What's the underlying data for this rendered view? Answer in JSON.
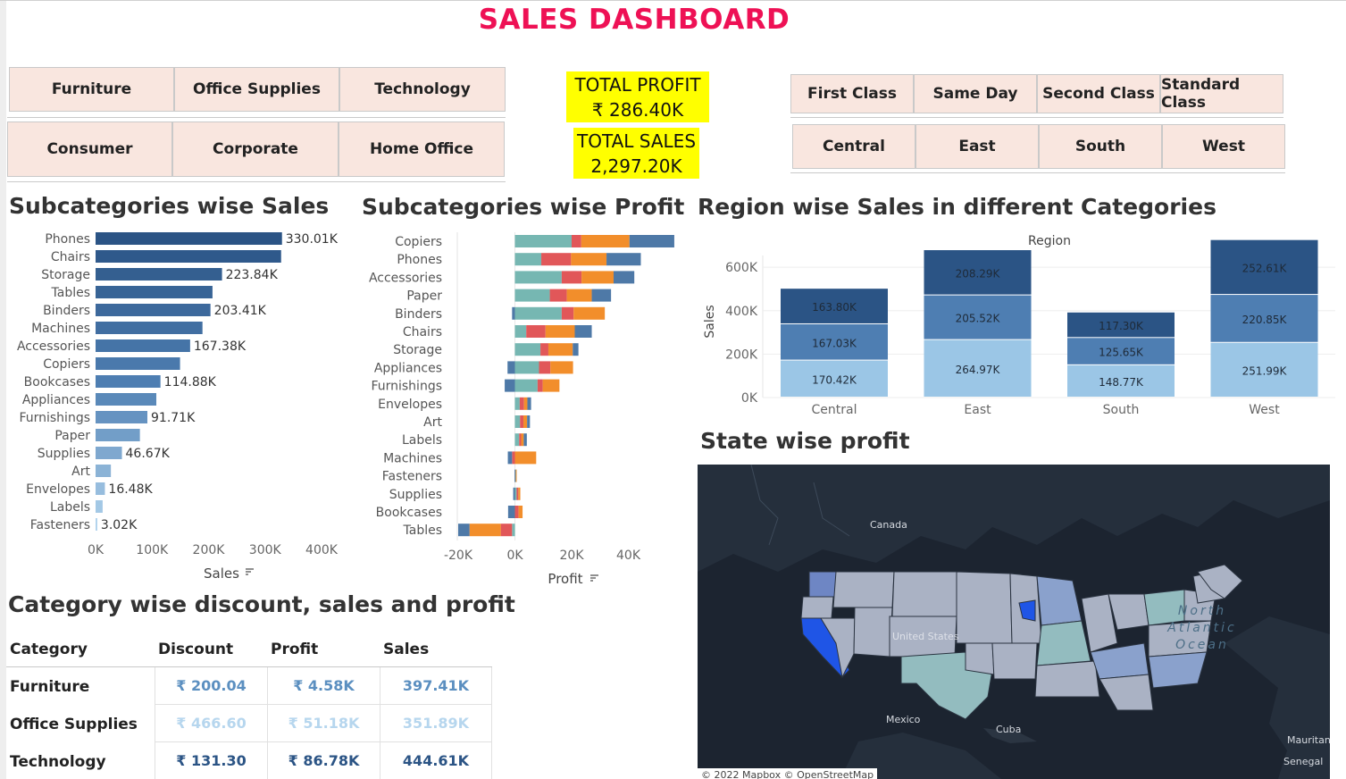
{
  "title": "SALES DASHBOARD",
  "filters": {
    "categories": [
      "Furniture",
      "Office Supplies",
      "Technology"
    ],
    "segments": [
      "Consumer",
      "Corporate",
      "Home Office"
    ],
    "ship_modes": [
      "First Class",
      "Same Day",
      "Second Class",
      "Standard Class"
    ],
    "regions": [
      "Central",
      "East",
      "South",
      "West"
    ]
  },
  "kpis": {
    "profit_label": "TOTAL PROFIT",
    "profit_value": "₹ 286.40K",
    "sales_label": "TOTAL SALES",
    "sales_value": "2,297.20K"
  },
  "sections": {
    "sub_sales": "Subcategories wise Sales",
    "sub_profit": "Subcategories wise Profit",
    "region_sales": "Region wise Sales in different Categories",
    "state_profit": "State wise profit",
    "category_table": "Category wise discount, sales and profit"
  },
  "colors": {
    "title": "#ee1155",
    "kpi_bg": "#ffff00",
    "filter_bg": "#f9e6df",
    "blue_dark": "#2b5485",
    "blue_mid": "#4e7eb2",
    "blue_light": "#9bc6e6",
    "teal": "#76b7b2",
    "red": "#e15759",
    "orange": "#f28e2b",
    "steel": "#4e79a7"
  },
  "chart_data": [
    {
      "type": "bar",
      "orientation": "horizontal",
      "title": "Subcategories wise Sales",
      "xlabel": "Sales",
      "categories": [
        "Phones",
        "Chairs",
        "Storage",
        "Tables",
        "Binders",
        "Machines",
        "Accessories",
        "Copiers",
        "Bookcases",
        "Appliances",
        "Furnishings",
        "Paper",
        "Supplies",
        "Art",
        "Envelopes",
        "Labels",
        "Fasteners"
      ],
      "values": [
        330010,
        328450,
        223840,
        206970,
        203410,
        189240,
        167380,
        149530,
        114880,
        107530,
        91710,
        78480,
        46670,
        27120,
        16480,
        12490,
        3020
      ],
      "data_labels": [
        "330.01K",
        "",
        "223.84K",
        "",
        "203.41K",
        "",
        "167.38K",
        "",
        "114.88K",
        "",
        "91.71K",
        "",
        "46.67K",
        "",
        "16.48K",
        "",
        "3.02K"
      ],
      "x_ticks": [
        "0K",
        "100K",
        "200K",
        "300K",
        "400K"
      ],
      "xlim": [
        0,
        400000
      ]
    },
    {
      "type": "bar",
      "orientation": "horizontal",
      "stacked": true,
      "title": "Subcategories wise Profit",
      "xlabel": "Profit",
      "categories": [
        "Copiers",
        "Phones",
        "Accessories",
        "Paper",
        "Binders",
        "Chairs",
        "Storage",
        "Appliances",
        "Furnishings",
        "Envelopes",
        "Art",
        "Labels",
        "Machines",
        "Fasteners",
        "Supplies",
        "Bookcases",
        "Tables"
      ],
      "series": [
        {
          "color": "#76b7b2",
          "values": [
            20000,
            9300,
            16500,
            12300,
            16500,
            4000,
            9000,
            8500,
            8000,
            1700,
            1800,
            1500,
            0,
            300,
            600,
            0,
            -1000
          ]
        },
        {
          "color": "#e15759",
          "values": [
            3400,
            10500,
            7000,
            6000,
            4200,
            6800,
            2800,
            4000,
            1800,
            1500,
            1200,
            700,
            -1000,
            0,
            600,
            1300,
            -4000
          ]
        },
        {
          "color": "#f28e2b",
          "values": [
            17000,
            12500,
            11300,
            8800,
            11000,
            10300,
            8600,
            8000,
            5900,
            1200,
            1300,
            900,
            7500,
            150,
            700,
            1400,
            -11000
          ]
        },
        {
          "color": "#4e79a7",
          "values": [
            15800,
            12100,
            7300,
            6800,
            -1000,
            6000,
            2000,
            -2600,
            -3600,
            1300,
            1000,
            1100,
            -1500,
            -100,
            -600,
            -2400,
            -4000
          ]
        }
      ],
      "x_ticks": [
        "-20K",
        "0K",
        "20K",
        "40K"
      ],
      "xlim": [
        -20000,
        60000
      ]
    },
    {
      "type": "bar",
      "stacked": true,
      "title": "Region wise Sales in different Categories",
      "x_header": "Region",
      "ylabel": "Sales",
      "categories": [
        "Central",
        "East",
        "South",
        "West"
      ],
      "series": [
        {
          "color": "#9bc6e6",
          "values": [
            170420,
            264970,
            148770,
            251990
          ],
          "labels": [
            "170.42K",
            "264.97K",
            "148.77K",
            "251.99K"
          ]
        },
        {
          "color": "#4e7eb2",
          "values": [
            167030,
            205520,
            125650,
            220850
          ],
          "labels": [
            "167.03K",
            "205.52K",
            "125.65K",
            "220.85K"
          ]
        },
        {
          "color": "#2b5485",
          "values": [
            163800,
            208290,
            117300,
            252610
          ],
          "labels": [
            "163.80K",
            "208.29K",
            "117.30K",
            "252.61K"
          ]
        }
      ],
      "y_ticks": [
        "0K",
        "200K",
        "400K",
        "600K"
      ],
      "ylim": [
        0,
        720000
      ]
    }
  ],
  "map": {
    "labels": [
      "Canada",
      "United States",
      "Mexico",
      "Cuba",
      "Mauritania",
      "Senegal"
    ],
    "ocean": [
      "North",
      "Atlantic",
      "Ocean"
    ],
    "attribution": "© 2022 Mapbox © OpenStreetMap"
  },
  "table": {
    "headers": [
      "Category",
      "Discount",
      "Profit",
      "Sales"
    ],
    "rows": [
      {
        "category": "Furniture",
        "discount": "₹ 200.04",
        "profit": "₹ 4.58K",
        "sales": "397.41K"
      },
      {
        "category": "Office Supplies",
        "discount": "₹ 466.60",
        "profit": "₹ 51.18K",
        "sales": "351.89K"
      },
      {
        "category": "Technology",
        "discount": "₹ 131.30",
        "profit": "₹ 86.78K",
        "sales": "444.61K"
      }
    ],
    "row_colors": [
      "#5b8fc0",
      "#b6d6ee",
      "#2b5485"
    ]
  }
}
